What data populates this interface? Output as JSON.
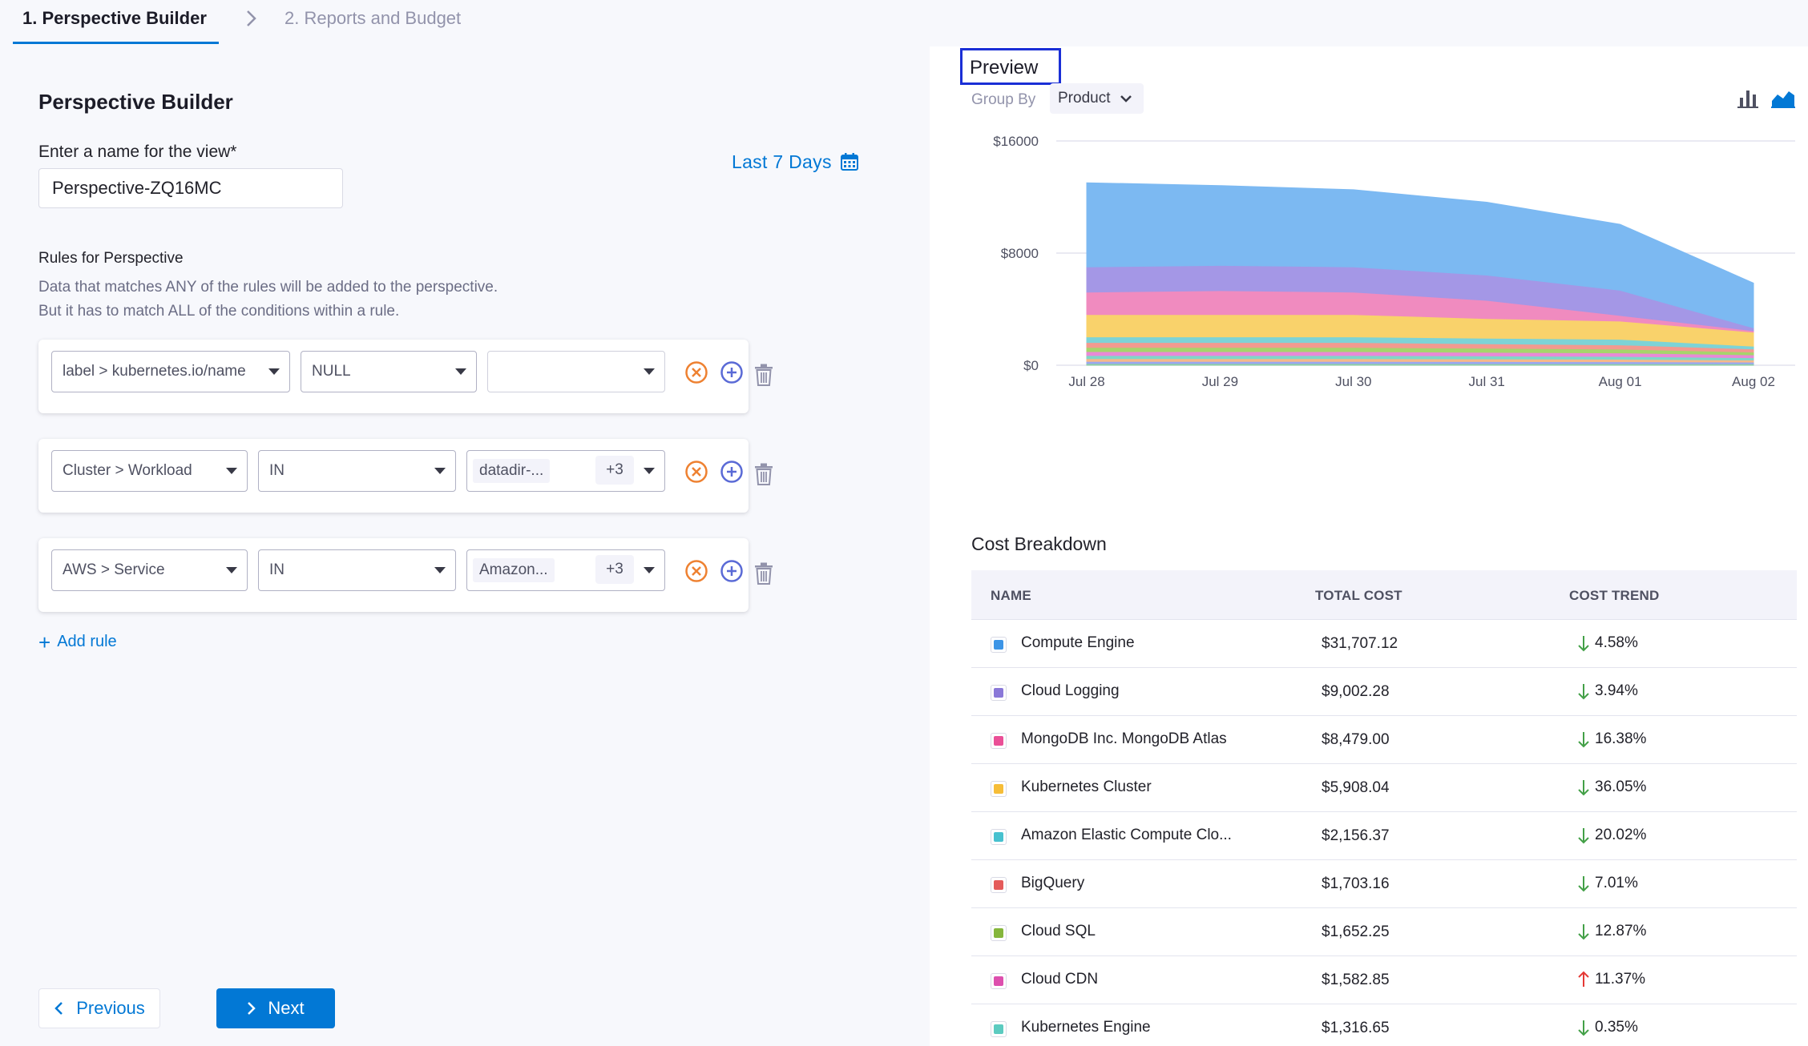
{
  "steps": {
    "step1": "1. Perspective Builder",
    "step2": "2. Reports and Budget"
  },
  "builder": {
    "title": "Perspective Builder",
    "name_label": "Enter a name for the view*",
    "name_value": "Perspective-ZQ16MC",
    "date_range": "Last 7 Days",
    "rules_title": "Rules for Perspective",
    "rules_desc_line1": "Data that matches ANY of the rules will be added to the perspective.",
    "rules_desc_line2": "But it has to match ALL of the conditions within a rule.",
    "add_rule": "Add rule",
    "rules": [
      {
        "field": "label > kubernetes.io/name",
        "operator": "NULL",
        "value": "",
        "extra": ""
      },
      {
        "field": "Cluster > Workload",
        "operator": "IN",
        "value": "datadir-...",
        "extra": "+3"
      },
      {
        "field": "AWS > Service",
        "operator": "IN",
        "value": "Amazon...",
        "extra": "+3"
      }
    ]
  },
  "nav": {
    "previous": "Previous",
    "next": "Next"
  },
  "preview": {
    "title": "Preview",
    "group_by_label": "Group By",
    "group_by_value": "Product"
  },
  "chart_data": {
    "type": "area",
    "stacked": true,
    "x": [
      "Jul 28",
      "Jul 29",
      "Jul 30",
      "Jul 31",
      "Aug 01",
      "Aug 02"
    ],
    "ylim": [
      0,
      16000
    ],
    "yticks": [
      "$0",
      "$8000",
      "$16000"
    ],
    "grid": true,
    "series": [
      {
        "name": "Compute Engine",
        "color": "#7cb9f2",
        "values": [
          6000,
          5700,
          5500,
          5200,
          4700,
          3200
        ]
      },
      {
        "name": "Cloud Logging",
        "color": "#a497e6",
        "values": [
          1800,
          1800,
          1800,
          1800,
          1800,
          200
        ]
      },
      {
        "name": "MongoDB Inc. MongoDB Atlas",
        "color": "#f08bbf",
        "values": [
          1600,
          1700,
          1600,
          1300,
          400,
          100
        ]
      },
      {
        "name": "Kubernetes Cluster",
        "color": "#f9d26b",
        "values": [
          1600,
          1600,
          1600,
          1400,
          1300,
          1000
        ]
      },
      {
        "name": "Amazon Elastic Compute Clo...",
        "color": "#7dd3d6",
        "values": [
          400,
          400,
          400,
          400,
          400,
          200
        ]
      },
      {
        "name": "BigQuery",
        "color": "#f29a8f",
        "values": [
          350,
          350,
          350,
          320,
          300,
          220
        ]
      },
      {
        "name": "Cloud SQL",
        "color": "#a6d46b",
        "values": [
          300,
          300,
          300,
          290,
          270,
          200
        ]
      },
      {
        "name": "Cloud CDN",
        "color": "#e88ad6",
        "values": [
          280,
          280,
          280,
          260,
          250,
          200
        ]
      },
      {
        "name": "Kubernetes Engine",
        "color": "#80d7c8",
        "values": [
          220,
          220,
          220,
          210,
          200,
          170
        ]
      },
      {
        "name": "",
        "color": "#f5b98a",
        "values": [
          200,
          200,
          200,
          190,
          180,
          150
        ]
      },
      {
        "name": "",
        "color": "#9aa7f0",
        "values": [
          150,
          150,
          150,
          150,
          140,
          120
        ]
      },
      {
        "name": "",
        "color": "#8fd0a6",
        "values": [
          120,
          120,
          120,
          110,
          110,
          100
        ]
      }
    ]
  },
  "cost_breakdown": {
    "title": "Cost Breakdown",
    "headers": {
      "name": "NAME",
      "total_cost": "TOTAL COST",
      "cost_trend": "COST TREND"
    },
    "rows": [
      {
        "name": "Compute Engine",
        "cost": "$31,707.12",
        "trend": "4.58%",
        "direction": "down",
        "color": "#3b94e6"
      },
      {
        "name": "Cloud Logging",
        "cost": "$9,002.28",
        "trend": "3.94%",
        "direction": "down",
        "color": "#8a78d8"
      },
      {
        "name": "MongoDB Inc. MongoDB Atlas",
        "cost": "$8,479.00",
        "trend": "16.38%",
        "direction": "down",
        "color": "#ea4f97"
      },
      {
        "name": "Kubernetes Cluster",
        "cost": "$5,908.04",
        "trend": "36.05%",
        "direction": "down",
        "color": "#f6bd38"
      },
      {
        "name": "Amazon Elastic Compute Clo...",
        "cost": "$2,156.37",
        "trend": "20.02%",
        "direction": "down",
        "color": "#47c1cf"
      },
      {
        "name": "BigQuery",
        "cost": "$1,703.16",
        "trend": "7.01%",
        "direction": "down",
        "color": "#e45a5a"
      },
      {
        "name": "Cloud SQL",
        "cost": "$1,652.25",
        "trend": "12.87%",
        "direction": "down",
        "color": "#85b63c"
      },
      {
        "name": "Cloud CDN",
        "cost": "$1,582.85",
        "trend": "11.37%",
        "direction": "up",
        "color": "#dd4fae"
      },
      {
        "name": "Kubernetes Engine",
        "cost": "$1,316.65",
        "trend": "0.35%",
        "direction": "down",
        "color": "#5ccbc0"
      }
    ]
  },
  "colors": {
    "accent": "#0278d5",
    "remove_icon": "#ee8131",
    "add_icon": "#5a6ad6",
    "trend_down": "#43a047",
    "trend_up": "#e53935",
    "preview_border": "#1a2fd6"
  }
}
